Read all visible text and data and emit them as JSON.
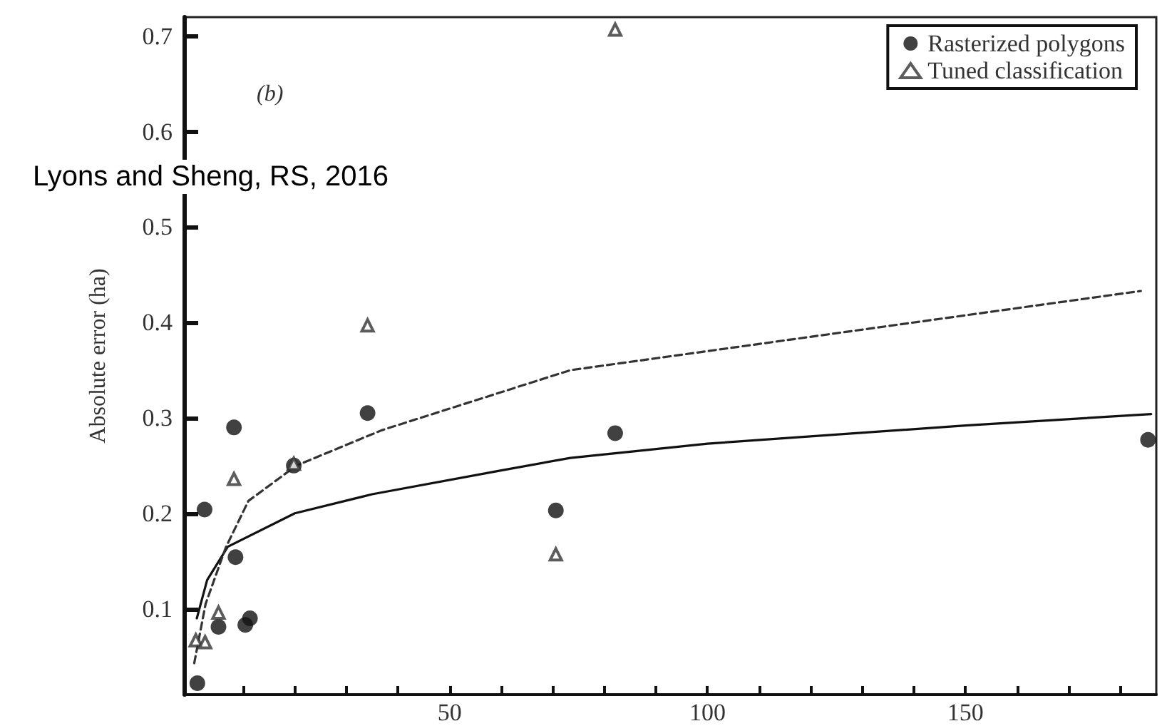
{
  "chart_data": {
    "type": "scatter",
    "ylabel": "Absolute error (ha)",
    "annotations": [
      "(b)",
      "Lyons and Sheng, RS, 2016"
    ],
    "xlim": [
      -1.5,
      187
    ],
    "ylim": [
      0.01,
      0.72
    ],
    "xticks": [
      {
        "value": 10,
        "label": null
      },
      {
        "value": 20,
        "label": null
      },
      {
        "value": 30,
        "label": null
      },
      {
        "value": 40,
        "label": null
      },
      50,
      {
        "value": 60,
        "label": null
      },
      {
        "value": 70,
        "label": null
      },
      {
        "value": 80,
        "label": null
      },
      {
        "value": 90,
        "label": null
      },
      100,
      {
        "value": 110,
        "label": null
      },
      {
        "value": 120,
        "label": null
      },
      {
        "value": 130,
        "label": null
      },
      {
        "value": 140,
        "label": null
      },
      150,
      {
        "value": 160,
        "label": null
      },
      {
        "value": 170,
        "label": null
      },
      {
        "value": 180,
        "label": null
      }
    ],
    "yticks": [
      0.1,
      0.2,
      0.3,
      0.4,
      0.5,
      0.6,
      0.7
    ],
    "grid": false,
    "legend": "top right",
    "series": [
      {
        "name": "Rasterized polygons",
        "type": "scatter",
        "marker": "circle",
        "color": "#111111",
        "x": [
          1.1,
          2.5,
          5.2,
          8.2,
          8.5,
          10.4,
          11.3,
          19.8,
          34.1,
          70.6,
          82.1,
          185.4
        ],
        "values": [
          0.022,
          0.204,
          0.081,
          0.29,
          0.154,
          0.083,
          0.09,
          0.25,
          0.305,
          0.203,
          0.284,
          0.277
        ]
      },
      {
        "name": "Tuned classification",
        "type": "scatter",
        "marker": "triangle",
        "color": "#333333",
        "x": [
          0.8,
          2.6,
          5.2,
          8.2,
          19.8,
          34.1,
          70.6,
          82.1
        ],
        "values": [
          0.067,
          0.065,
          0.096,
          0.236,
          0.252,
          0.397,
          0.157,
          0.707
        ]
      },
      {
        "type": "line",
        "marker": "none",
        "line_style": "solid",
        "color": "#111111",
        "x": [
          1,
          3,
          7,
          20,
          35,
          60,
          73.4,
          100,
          150,
          186
        ],
        "values": [
          0.09,
          0.13,
          0.165,
          0.2,
          0.22,
          0.245,
          0.258,
          0.273,
          0.292,
          0.304
        ]
      },
      {
        "type": "line",
        "marker": "none",
        "line_style": "dashed",
        "color": "#333333",
        "x": [
          0.5,
          2.7,
          6.6,
          11,
          20.3,
          36.8,
          73.4,
          128,
          184
        ],
        "values": [
          0.043,
          0.105,
          0.164,
          0.213,
          0.25,
          0.287,
          0.35,
          0.391,
          0.433
        ]
      }
    ]
  }
}
